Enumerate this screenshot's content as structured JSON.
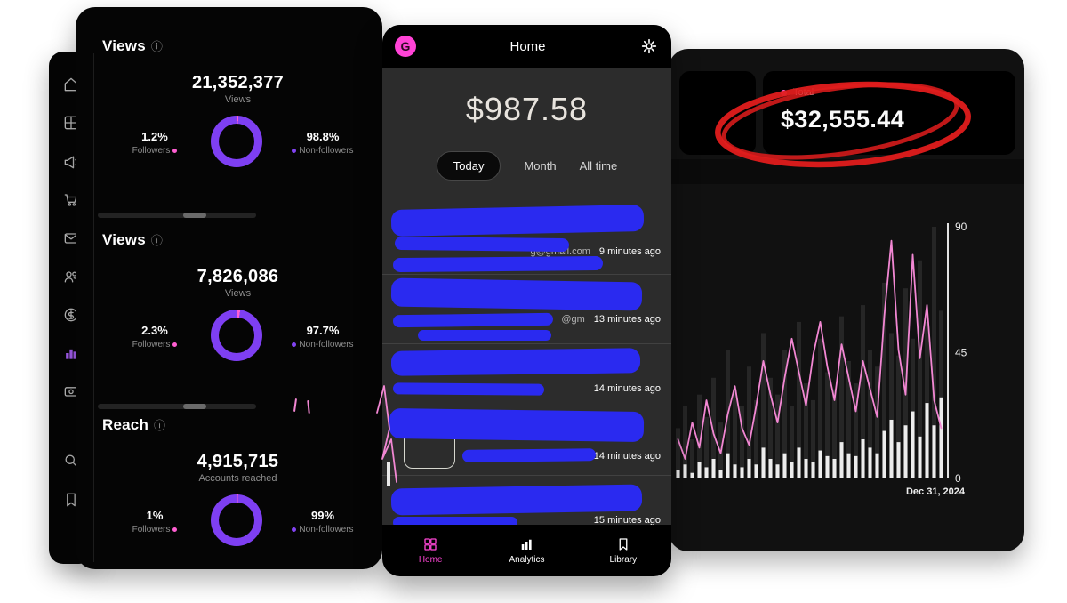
{
  "colors": {
    "purple": "#7e3ff2",
    "pink": "#ff5fd2",
    "chart_line": "#f287d3",
    "bar_dark": "#262626",
    "bar_light": "#ececec",
    "scribble_blue": "#2a2af0",
    "annotation_red": "#e01c1c",
    "nav_active_pink": "#ff46d6"
  },
  "left_panel": {
    "sidebar_icons": [
      "home-icon",
      "content-icon",
      "ads-icon",
      "cart-icon",
      "messages-icon",
      "audience-icon",
      "earnings-icon",
      "insights-icon",
      "monetization-icon",
      "search-icon",
      "saved-icon"
    ],
    "info_icon": "ⓘ",
    "sections": [
      {
        "title": "Views",
        "value": "21,352,377",
        "caption": "Views",
        "followers_pct": "1.2%",
        "followers_label": "Followers",
        "nonfollowers_pct": "98.8%",
        "nonfollowers_label": "Non-followers",
        "donut_main": 98.8
      },
      {
        "title": "Views",
        "value": "7,826,086",
        "caption": "Views",
        "followers_pct": "2.3%",
        "followers_label": "Followers",
        "nonfollowers_pct": "97.7%",
        "nonfollowers_label": "Non-followers",
        "donut_main": 97.7
      },
      {
        "title": "Reach",
        "value": "4,915,715",
        "caption": "Accounts reached",
        "followers_pct": "1%",
        "followers_label": "Followers",
        "nonfollowers_pct": "99%",
        "nonfollowers_label": "Non-followers",
        "donut_main": 99
      }
    ]
  },
  "phone": {
    "logo_letter": "G",
    "title": "Home",
    "balance": "$987.58",
    "tabs": [
      {
        "label": "Today",
        "active": true
      },
      {
        "label": "Month",
        "active": false
      },
      {
        "label": "All time",
        "active": false
      }
    ],
    "transactions": [
      {
        "fragment": "g@gmail.com",
        "time": "9 minutes ago"
      },
      {
        "fragment": "@gm",
        "time": "13 minutes ago"
      },
      {
        "fragment": "",
        "time": "14 minutes ago"
      },
      {
        "fragment": "",
        "time": "14 minutes ago"
      },
      {
        "fragment": "",
        "time": "15 minutes ago"
      }
    ],
    "nav": [
      {
        "label": "Home",
        "icon": "home-icon",
        "active": true
      },
      {
        "label": "Analytics",
        "icon": "analytics-icon",
        "active": false
      },
      {
        "label": "Library",
        "icon": "library-icon",
        "active": false
      }
    ]
  },
  "right_panel": {
    "total_label": "Total",
    "total_value": "$32,555.44",
    "date_label": "Dec 31, 2024"
  },
  "chart_data": {
    "type": "bar+line",
    "ylim": [
      0,
      90
    ],
    "y_ticks": [
      0,
      45,
      90
    ],
    "x_label": "Dec 31, 2024",
    "legend": "none",
    "series": [
      {
        "name": "bars-dark",
        "type": "bar",
        "color": "#262626",
        "values": [
          18,
          26,
          14,
          30,
          22,
          36,
          20,
          46,
          32,
          26,
          40,
          28,
          52,
          36,
          30,
          46,
          26,
          56,
          34,
          28,
          50,
          38,
          32,
          58,
          42,
          34,
          62,
          46,
          40,
          70,
          52,
          44,
          68,
          50,
          78,
          56,
          90,
          60
        ]
      },
      {
        "name": "bars-light",
        "type": "bar",
        "color": "#ececec",
        "values": [
          3,
          5,
          2,
          6,
          4,
          7,
          3,
          9,
          5,
          4,
          7,
          5,
          11,
          7,
          5,
          9,
          6,
          11,
          7,
          6,
          10,
          8,
          7,
          13,
          9,
          8,
          14,
          11,
          9,
          17,
          21,
          13,
          19,
          24,
          15,
          27,
          19,
          29
        ]
      },
      {
        "name": "line",
        "type": "line",
        "color": "#f287d3",
        "values": [
          14,
          7,
          20,
          11,
          28,
          16,
          9,
          23,
          33,
          18,
          12,
          26,
          42,
          30,
          20,
          36,
          50,
          38,
          26,
          44,
          56,
          40,
          28,
          48,
          36,
          24,
          42,
          32,
          22,
          58,
          85,
          46,
          30,
          80,
          43,
          62,
          28,
          18
        ]
      }
    ]
  }
}
